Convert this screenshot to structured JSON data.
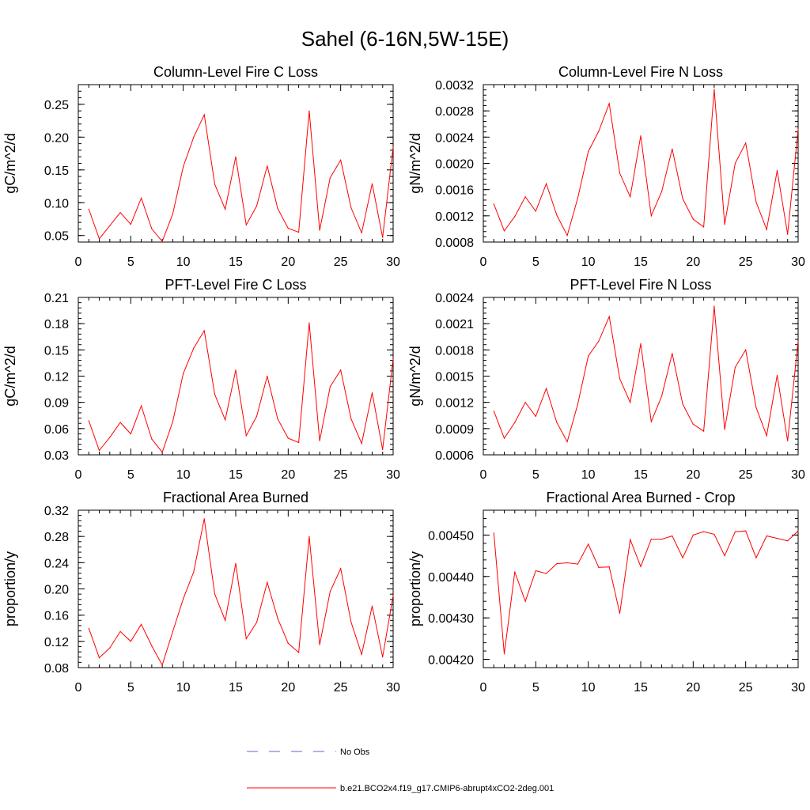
{
  "figure_title": "Sahel (6-16N,5W-15E)",
  "colors": {
    "model": "#ff0000",
    "obs": "#6666cc",
    "axis": "#000000"
  },
  "legend": [
    {
      "label": "No Obs",
      "style": "dashed",
      "color": "#6666cc"
    },
    {
      "label": "b.e21.BCO2x4.f19_g17.CMIP6-abrupt4xCO2-2deg.001",
      "style": "solid",
      "color": "#ff0000"
    }
  ],
  "chart_data": [
    {
      "type": "line",
      "title": "Column-Level Fire C Loss",
      "xlabel": "",
      "ylabel": "gC/m^2/d",
      "xlim": [
        0,
        30
      ],
      "ylim": [
        0.04,
        0.28
      ],
      "xticks": [
        "0",
        "5",
        "10",
        "15",
        "20",
        "25",
        "30"
      ],
      "yticks": [
        "0.05",
        "0.10",
        "0.15",
        "0.20",
        "0.25"
      ],
      "series": [
        {
          "name": "b.e21.BCO2x4.f19_g17.CMIP6-abrupt4xCO2-2deg.001",
          "x": [
            1,
            2,
            3,
            4,
            5,
            6,
            7,
            8,
            9,
            10,
            11,
            12,
            13,
            14,
            15,
            16,
            17,
            18,
            19,
            20,
            21,
            22,
            23,
            24,
            25,
            26,
            27,
            28,
            29,
            30
          ],
          "values": [
            0.09,
            0.045,
            0.065,
            0.085,
            0.067,
            0.107,
            0.06,
            0.041,
            0.083,
            0.155,
            0.2,
            0.234,
            0.128,
            0.09,
            0.17,
            0.066,
            0.095,
            0.156,
            0.091,
            0.061,
            0.055,
            0.24,
            0.058,
            0.138,
            0.165,
            0.092,
            0.054,
            0.129,
            0.047,
            0.185
          ]
        }
      ]
    },
    {
      "type": "line",
      "title": "Column-Level Fire N Loss",
      "xlabel": "",
      "ylabel": "gN/m^2/d",
      "xlim": [
        0,
        30
      ],
      "ylim": [
        0.0008,
        0.0032
      ],
      "xticks": [
        "0",
        "5",
        "10",
        "15",
        "20",
        "25",
        "30"
      ],
      "yticks": [
        "0.0008",
        "0.0012",
        "0.0016",
        "0.0020",
        "0.0024",
        "0.0028",
        "0.0032"
      ],
      "series": [
        {
          "name": "b.e21.BCO2x4.f19_g17.CMIP6-abrupt4xCO2-2deg.001",
          "x": [
            1,
            2,
            3,
            4,
            5,
            6,
            7,
            8,
            9,
            10,
            11,
            12,
            13,
            14,
            15,
            16,
            17,
            18,
            19,
            20,
            21,
            22,
            23,
            24,
            25,
            26,
            27,
            28,
            29,
            30
          ],
          "values": [
            0.00138,
            0.00097,
            0.00119,
            0.00149,
            0.00127,
            0.00169,
            0.00121,
            0.0009,
            0.00147,
            0.00218,
            0.00249,
            0.00291,
            0.00185,
            0.00149,
            0.00242,
            0.0012,
            0.00157,
            0.00222,
            0.00146,
            0.00115,
            0.00103,
            0.00313,
            0.00107,
            0.002,
            0.00231,
            0.00141,
            0.00099,
            0.00189,
            0.00092,
            0.00252
          ]
        }
      ]
    },
    {
      "type": "line",
      "title": "PFT-Level Fire C Loss",
      "xlabel": "",
      "ylabel": "gC/m^2/d",
      "xlim": [
        0,
        30
      ],
      "ylim": [
        0.03,
        0.21
      ],
      "xticks": [
        "0",
        "5",
        "10",
        "15",
        "20",
        "25",
        "30"
      ],
      "yticks": [
        "0.03",
        "0.06",
        "0.09",
        "0.12",
        "0.15",
        "0.18",
        "0.21"
      ],
      "series": [
        {
          "name": "b.e21.BCO2x4.f19_g17.CMIP6-abrupt4xCO2-2deg.001",
          "x": [
            1,
            2,
            3,
            4,
            5,
            6,
            7,
            8,
            9,
            10,
            11,
            12,
            13,
            14,
            15,
            16,
            17,
            18,
            19,
            20,
            21,
            22,
            23,
            24,
            25,
            26,
            27,
            28,
            29,
            30
          ],
          "values": [
            0.069,
            0.035,
            0.05,
            0.067,
            0.054,
            0.086,
            0.048,
            0.033,
            0.068,
            0.123,
            0.152,
            0.172,
            0.099,
            0.07,
            0.127,
            0.052,
            0.074,
            0.12,
            0.071,
            0.049,
            0.044,
            0.181,
            0.046,
            0.108,
            0.127,
            0.071,
            0.043,
            0.101,
            0.036,
            0.14
          ]
        }
      ]
    },
    {
      "type": "line",
      "title": "PFT-Level Fire N Loss",
      "xlabel": "",
      "ylabel": "gN/m^2/d",
      "xlim": [
        0,
        30
      ],
      "ylim": [
        0.0006,
        0.0024
      ],
      "xticks": [
        "0",
        "5",
        "10",
        "15",
        "20",
        "25",
        "30"
      ],
      "yticks": [
        "0.0006",
        "0.0009",
        "0.0012",
        "0.0015",
        "0.0018",
        "0.0021",
        "0.0024"
      ],
      "series": [
        {
          "name": "b.e21.BCO2x4.f19_g17.CMIP6-abrupt4xCO2-2deg.001",
          "x": [
            1,
            2,
            3,
            4,
            5,
            6,
            7,
            8,
            9,
            10,
            11,
            12,
            13,
            14,
            15,
            16,
            17,
            18,
            19,
            20,
            21,
            22,
            23,
            24,
            25,
            26,
            27,
            28,
            29,
            30
          ],
          "values": [
            0.0011,
            0.00079,
            0.00097,
            0.0012,
            0.00104,
            0.00136,
            0.00097,
            0.00075,
            0.00118,
            0.00173,
            0.0019,
            0.00218,
            0.00147,
            0.0012,
            0.00187,
            0.00098,
            0.00127,
            0.00176,
            0.00118,
            0.00095,
            0.00087,
            0.0023,
            0.00089,
            0.0016,
            0.0018,
            0.00114,
            0.00082,
            0.00151,
            0.00076,
            0.0019
          ]
        }
      ]
    },
    {
      "type": "line",
      "title": "Fractional Area Burned",
      "xlabel": "",
      "ylabel": "proportion/y",
      "xlim": [
        0,
        30
      ],
      "ylim": [
        0.08,
        0.32
      ],
      "xticks": [
        "0",
        "5",
        "10",
        "15",
        "20",
        "25",
        "30"
      ],
      "yticks": [
        "0.08",
        "0.12",
        "0.16",
        "0.20",
        "0.24",
        "0.28",
        "0.32"
      ],
      "series": [
        {
          "name": "b.e21.BCO2x4.f19_g17.CMIP6-abrupt4xCO2-2deg.001",
          "x": [
            1,
            2,
            3,
            4,
            5,
            6,
            7,
            8,
            9,
            10,
            11,
            12,
            13,
            14,
            15,
            16,
            17,
            18,
            19,
            20,
            21,
            22,
            23,
            24,
            25,
            26,
            27,
            28,
            29,
            30
          ],
          "values": [
            0.14,
            0.095,
            0.11,
            0.135,
            0.12,
            0.146,
            0.113,
            0.084,
            0.135,
            0.185,
            0.226,
            0.307,
            0.192,
            0.152,
            0.239,
            0.124,
            0.149,
            0.21,
            0.155,
            0.117,
            0.103,
            0.28,
            0.115,
            0.196,
            0.231,
            0.149,
            0.1,
            0.174,
            0.096,
            0.19
          ]
        }
      ]
    },
    {
      "type": "line",
      "title": "Fractional Area Burned - Crop",
      "xlabel": "",
      "ylabel": "proportion/y",
      "xlim": [
        0,
        30
      ],
      "ylim": [
        0.00418,
        0.00456
      ],
      "xticks": [
        "0",
        "5",
        "10",
        "15",
        "20",
        "25",
        "30"
      ],
      "yticks": [
        "0.00420",
        "0.00430",
        "0.00440",
        "0.00450"
      ],
      "series": [
        {
          "name": "b.e21.BCO2x4.f19_g17.CMIP6-abrupt4xCO2-2deg.001",
          "x": [
            1,
            2,
            3,
            4,
            5,
            6,
            7,
            8,
            9,
            10,
            11,
            12,
            13,
            14,
            15,
            16,
            17,
            18,
            19,
            20,
            21,
            22,
            23,
            24,
            25,
            26,
            27,
            28,
            29,
            30
          ],
          "values": [
            0.004505,
            0.004213,
            0.004411,
            0.00434,
            0.004414,
            0.004407,
            0.004431,
            0.004433,
            0.00443,
            0.004478,
            0.004422,
            0.004423,
            0.004311,
            0.004489,
            0.004424,
            0.00449,
            0.00449,
            0.004498,
            0.004445,
            0.0045,
            0.004508,
            0.004502,
            0.00445,
            0.004508,
            0.00451,
            0.004445,
            0.004498,
            0.004492,
            0.004486,
            0.00451
          ]
        }
      ]
    }
  ]
}
